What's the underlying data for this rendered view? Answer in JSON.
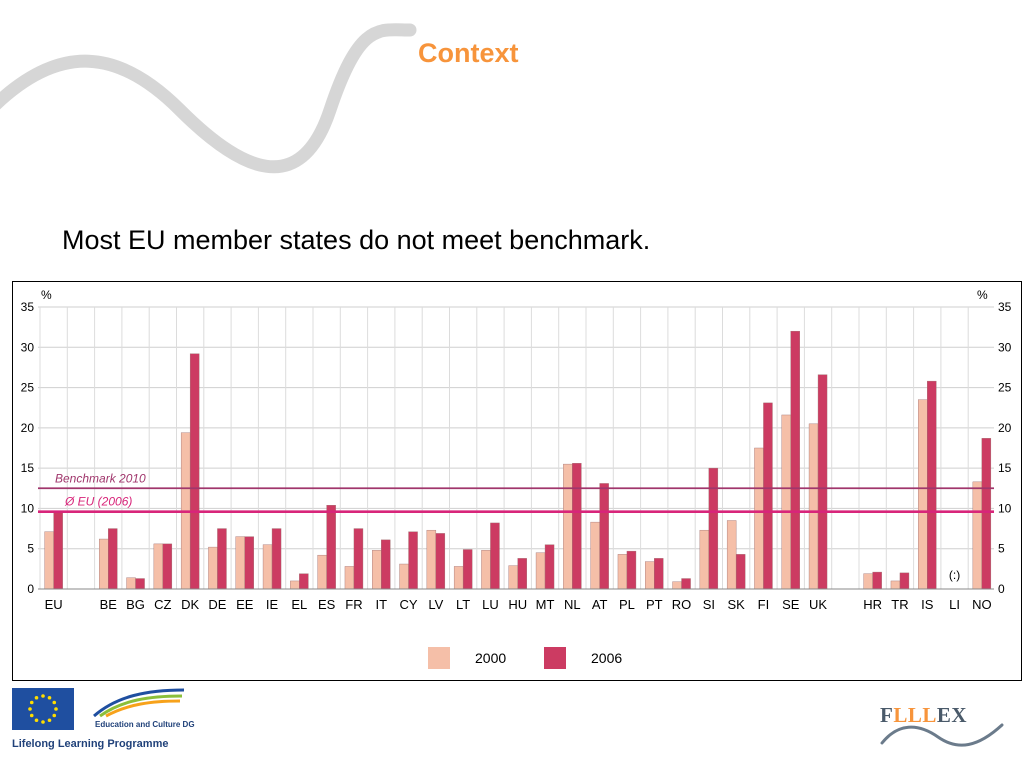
{
  "slide": {
    "title": "Context",
    "subtitle": "Most EU member states do not meet benchmark."
  },
  "chart_data": {
    "type": "bar",
    "y_unit_left": "%",
    "y_unit_right": "%",
    "ylim": [
      0,
      35
    ],
    "y_ticks": [
      "0",
      "5",
      "10",
      "15",
      "20",
      "25",
      "30",
      "35"
    ],
    "categories": [
      "EU",
      "BE",
      "BG",
      "CZ",
      "DK",
      "DE",
      "EE",
      "IE",
      "EL",
      "ES",
      "FR",
      "IT",
      "CY",
      "LV",
      "LT",
      "LU",
      "HU",
      "MT",
      "NL",
      "AT",
      "PL",
      "PT",
      "RO",
      "SI",
      "SK",
      "FI",
      "SE",
      "UK",
      "HR",
      "TR",
      "IS",
      "LI",
      "NO"
    ],
    "series": [
      {
        "name": "2000",
        "color": "#f5bfa8",
        "values": [
          7.1,
          6.2,
          1.4,
          5.6,
          19.4,
          5.2,
          6.5,
          5.5,
          1.0,
          4.2,
          2.8,
          4.8,
          3.1,
          7.3,
          2.8,
          4.8,
          2.9,
          4.5,
          15.5,
          8.3,
          4.3,
          3.4,
          0.9,
          7.3,
          8.5,
          17.5,
          21.6,
          20.5,
          1.9,
          1.0,
          23.5,
          null,
          13.3
        ]
      },
      {
        "name": "2006",
        "color": "#cc3b62",
        "values": [
          9.6,
          7.5,
          1.3,
          5.6,
          29.2,
          7.5,
          6.5,
          7.5,
          1.9,
          10.4,
          7.5,
          6.1,
          7.1,
          6.9,
          4.9,
          8.2,
          3.8,
          5.5,
          15.6,
          13.1,
          4.7,
          3.8,
          1.3,
          15.0,
          4.3,
          23.1,
          32.0,
          26.6,
          2.1,
          2.0,
          25.8,
          null,
          18.7
        ]
      }
    ],
    "reference_lines": [
      {
        "label": "Benchmark 2010",
        "value": 12.5,
        "color": "#a0366c"
      },
      {
        "label": "Ø EU (2006)",
        "value": 9.6,
        "color": "#d8257a"
      }
    ],
    "annotations": [
      {
        "category": "LI",
        "text": "(:)"
      }
    ],
    "legend": {
      "placement": "bottom-center"
    }
  },
  "footer": {
    "dg_label": "Education and Culture DG",
    "programme_label": "Lifelong Learning Programme",
    "logo_text_prefix": "F",
    "logo_text_mid": "LLL",
    "logo_text_suffix": "EX"
  },
  "colors": {
    "title_orange": "#f7943b",
    "bar_2000": "#f5bfa8",
    "bar_2006": "#cc3b62",
    "benchmark_line": "#a0366c",
    "eu_avg_line": "#d8257a"
  }
}
